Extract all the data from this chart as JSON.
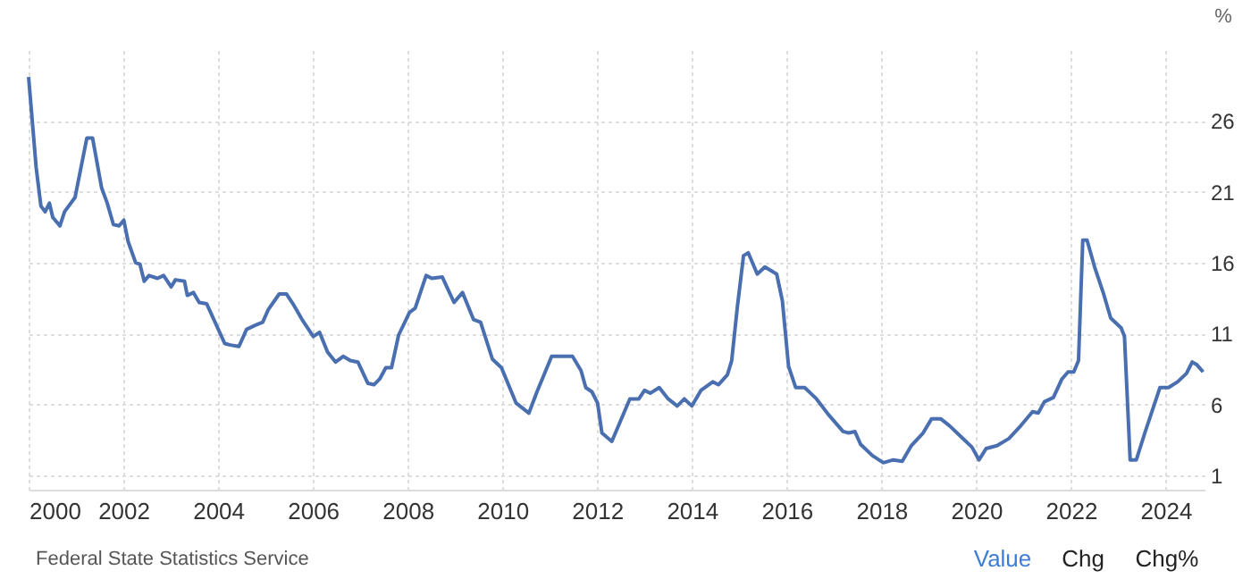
{
  "chart_data": {
    "type": "line",
    "ylabel": "%",
    "annotations": [
      "Federal State Statistics Service",
      "Value",
      "Chg",
      "Chg%"
    ],
    "xlim": [
      2000,
      2024.82
    ],
    "xticks": [
      2000,
      2002,
      2004,
      2006,
      2008,
      2010,
      2012,
      2014,
      2016,
      2018,
      2020,
      2022,
      2024
    ],
    "ylim": [
      0,
      31
    ],
    "yticks": [
      1,
      6,
      11,
      16,
      21,
      26
    ],
    "grid": true,
    "line_style": "solid",
    "marker": "none",
    "series": [
      {
        "color": "#4a6fb0",
        "x": [
          2000.0,
          2000.16,
          2000.26,
          2000.35,
          2000.44,
          2000.51,
          2000.66,
          2000.76,
          2000.98,
          2001.23,
          2001.35,
          2001.54,
          2001.66,
          2001.79,
          2001.91,
          2002.01,
          2002.1,
          2002.26,
          2002.35,
          2002.44,
          2002.54,
          2002.72,
          2002.85,
          2003.01,
          2003.1,
          2003.29,
          2003.35,
          2003.48,
          2003.6,
          2003.76,
          2003.91,
          2004.14,
          2004.26,
          2004.44,
          2004.6,
          2004.79,
          2004.94,
          2005.06,
          2005.29,
          2005.44,
          2005.6,
          2005.79,
          2006.01,
          2006.14,
          2006.31,
          2006.48,
          2006.64,
          2006.79,
          2006.95,
          2007.16,
          2007.29,
          2007.41,
          2007.54,
          2007.66,
          2007.81,
          2008.04,
          2008.16,
          2008.39,
          2008.51,
          2008.73,
          2008.98,
          2009.16,
          2009.39,
          2009.54,
          2009.79,
          2009.98,
          2010.29,
          2010.56,
          2010.73,
          2011.04,
          2011.23,
          2011.48,
          2011.66,
          2011.76,
          2011.89,
          2012.01,
          2012.1,
          2012.31,
          2012.5,
          2012.69,
          2012.88,
          2013.0,
          2013.12,
          2013.31,
          2013.5,
          2013.69,
          2013.84,
          2014.0,
          2014.19,
          2014.44,
          2014.56,
          2014.75,
          2014.84,
          2014.96,
          2015.09,
          2015.19,
          2015.38,
          2015.54,
          2015.79,
          2015.91,
          2016.04,
          2016.19,
          2016.38,
          2016.63,
          2016.88,
          2017.19,
          2017.31,
          2017.44,
          2017.56,
          2017.81,
          2018.04,
          2018.25,
          2018.44,
          2018.63,
          2018.88,
          2019.06,
          2019.25,
          2019.44,
          2019.69,
          2019.91,
          2020.06,
          2020.21,
          2020.44,
          2020.69,
          2020.94,
          2021.19,
          2021.31,
          2021.44,
          2021.63,
          2021.81,
          2021.94,
          2022.06,
          2022.16,
          2022.25,
          2022.34,
          2022.5,
          2022.69,
          2022.84,
          2023.06,
          2023.13,
          2023.25,
          2023.38,
          2023.56,
          2023.88,
          2024.06,
          2024.25,
          2024.44,
          2024.56,
          2024.66,
          2024.79
        ],
        "values": [
          29.1,
          22.7,
          20.0,
          19.6,
          20.2,
          19.2,
          18.6,
          19.6,
          20.6,
          24.8,
          24.8,
          21.3,
          20.2,
          18.7,
          18.6,
          19.0,
          17.5,
          16.0,
          15.9,
          14.7,
          15.1,
          14.9,
          15.1,
          14.3,
          14.8,
          14.7,
          13.7,
          13.9,
          13.2,
          13.1,
          12.0,
          10.3,
          10.2,
          10.1,
          11.3,
          11.6,
          11.8,
          12.7,
          13.8,
          13.8,
          13.0,
          11.9,
          10.8,
          11.1,
          9.7,
          9.0,
          9.4,
          9.1,
          9.0,
          7.5,
          7.4,
          7.8,
          8.6,
          8.6,
          10.9,
          12.5,
          12.8,
          15.1,
          14.9,
          15.0,
          13.2,
          13.9,
          12.0,
          11.8,
          9.2,
          8.6,
          6.1,
          5.4,
          6.9,
          9.4,
          9.4,
          9.4,
          8.4,
          7.2,
          6.9,
          6.1,
          4.0,
          3.4,
          4.9,
          6.4,
          6.4,
          7.0,
          6.8,
          7.2,
          6.4,
          5.9,
          6.4,
          5.9,
          7.0,
          7.6,
          7.4,
          8.1,
          9.1,
          12.9,
          16.5,
          16.7,
          15.2,
          15.7,
          15.2,
          13.3,
          8.7,
          7.2,
          7.2,
          6.4,
          5.3,
          4.1,
          4.0,
          4.1,
          3.2,
          2.4,
          1.9,
          2.1,
          2.0,
          3.1,
          4.0,
          5.0,
          5.0,
          4.5,
          3.7,
          3.0,
          2.1,
          2.9,
          3.1,
          3.6,
          4.5,
          5.5,
          5.4,
          6.2,
          6.5,
          7.8,
          8.3,
          8.3,
          9.1,
          17.6,
          17.6,
          15.7,
          13.8,
          12.1,
          11.4,
          10.8,
          2.1,
          2.1,
          4.0,
          7.2,
          7.2,
          7.6,
          8.2,
          9.0,
          8.8,
          8.3
        ]
      }
    ]
  }
}
